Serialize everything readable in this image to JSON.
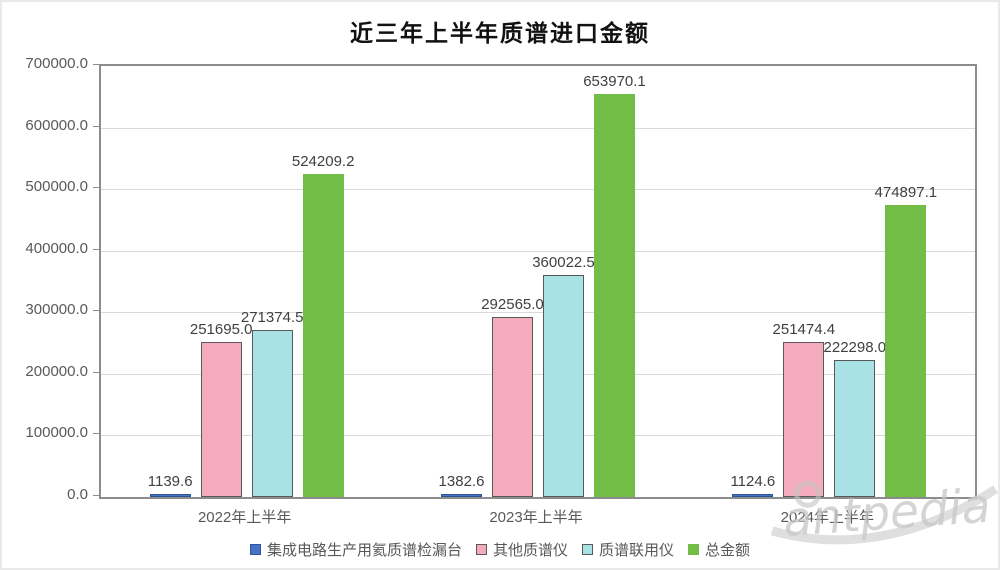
{
  "title": "近三年上半年质谱进口金额",
  "watermark_text": "antpedia",
  "chart_data": {
    "type": "bar",
    "title": "近三年上半年质谱进口金额",
    "categories": [
      "2022年上半年",
      "2023年上半年",
      "2024年上半年"
    ],
    "series": [
      {
        "name": "集成电路生产用氦质谱检漏台",
        "color": "#4472c4",
        "border": "#2f5597",
        "values": [
          1139.6,
          1382.6,
          1124.6
        ]
      },
      {
        "name": "其他质谱仪",
        "color": "#f4acbc",
        "border": "#595959",
        "values": [
          251695.0,
          292565.0,
          251474.4
        ]
      },
      {
        "name": "质谱联用仪",
        "color": "#a9e2e4",
        "border": "#595959",
        "values": [
          271374.5,
          360022.5,
          222298.0
        ]
      },
      {
        "name": "总金额",
        "color": "#71bd45",
        "border": "#71bd45",
        "values": [
          524209.2,
          653970.1,
          474897.1
        ]
      }
    ],
    "ylim": [
      0,
      700000
    ],
    "y_tick_step": 100000,
    "y_tick_labels": [
      "0.0",
      "100000.0",
      "200000.0",
      "300000.0",
      "400000.0",
      "500000.0",
      "600000.0",
      "700000.0"
    ],
    "grid": true,
    "data_labels": true,
    "legend_position": "bottom",
    "colors": {
      "gridline": "#d9d9d9",
      "axis": "#8c8c8c",
      "label_text": "#404040",
      "tick_text": "#595959"
    }
  }
}
